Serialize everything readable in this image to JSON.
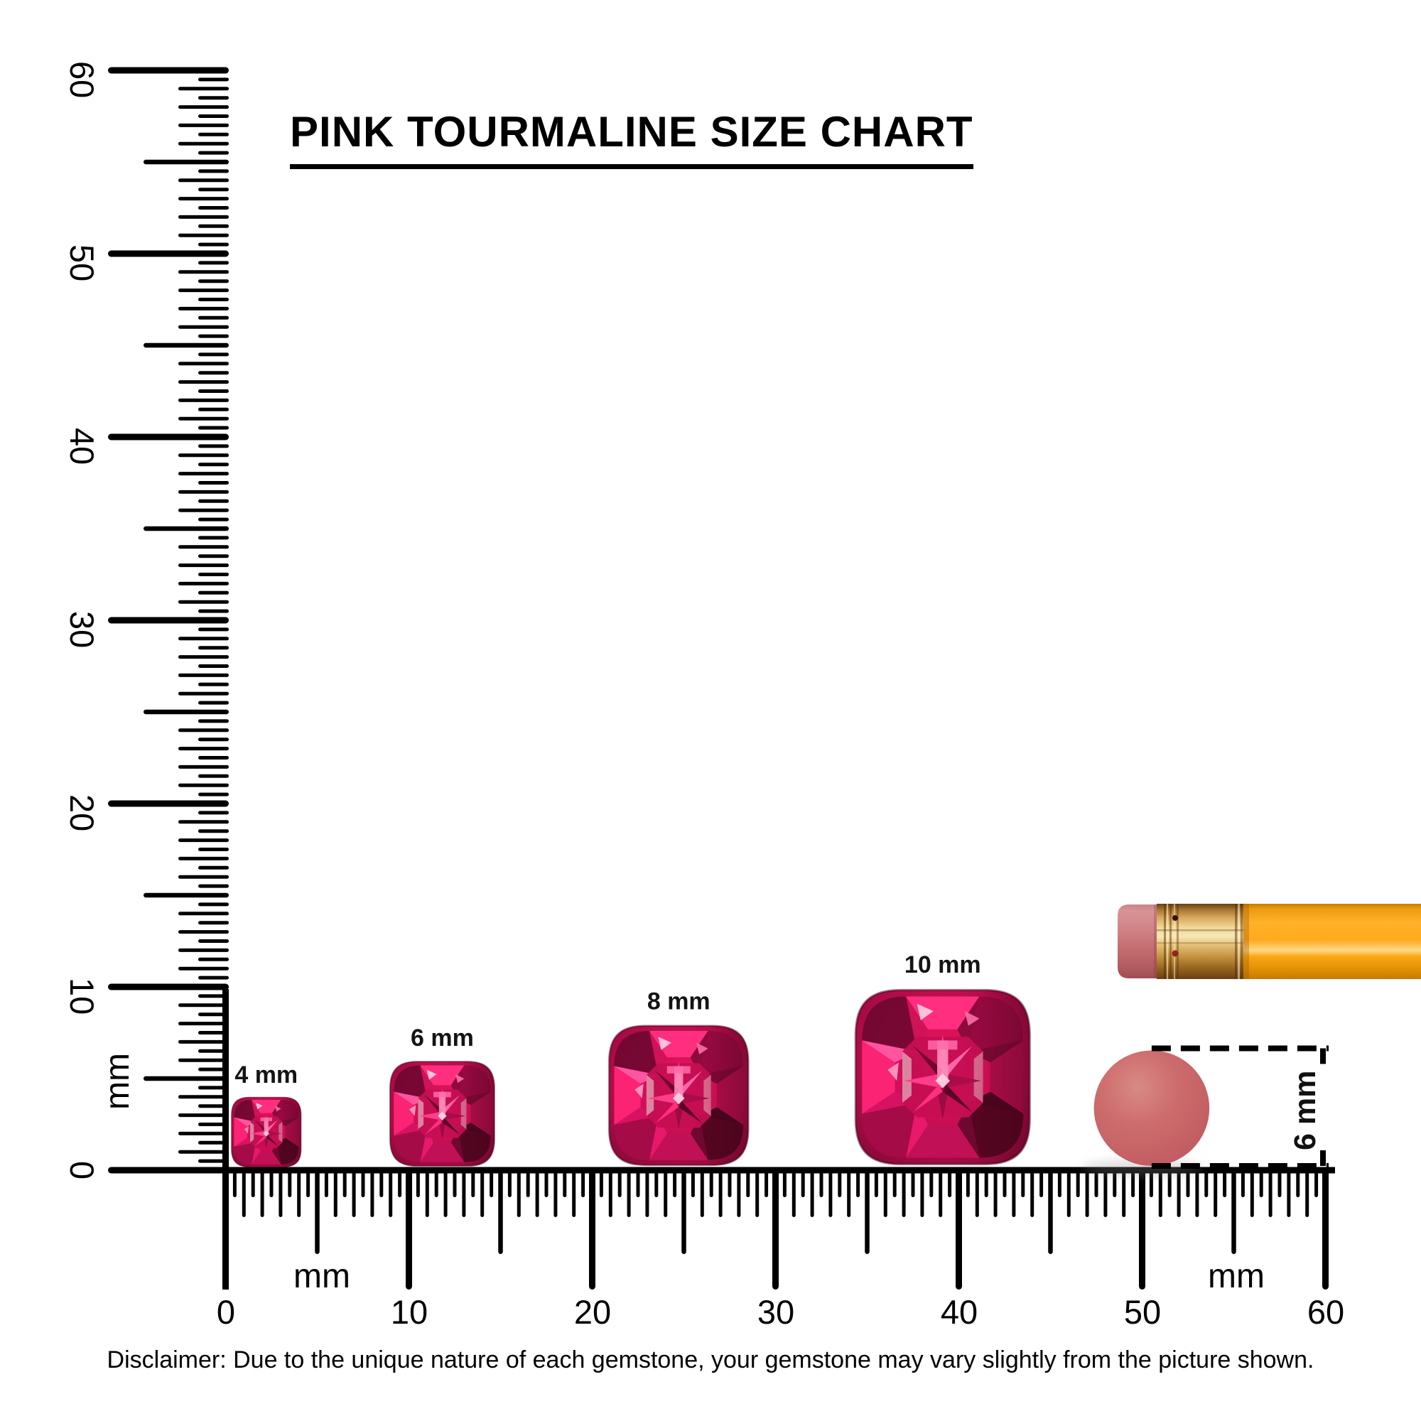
{
  "title": "PINK TOURMALINE SIZE CHART",
  "disclaimer": "Disclaimer: Due to the unique nature of each gemstone, your gemstone may vary slightly from the picture shown.",
  "rulers": {
    "vertical": {
      "unit_label": "mm",
      "min_mm": 0,
      "max_mm": 60,
      "major_labels": [
        "0",
        "10",
        "20",
        "30",
        "40",
        "50",
        "60"
      ]
    },
    "horizontal": {
      "unit_labels": [
        "mm",
        "mm"
      ],
      "min_mm": 0,
      "max_mm": 60,
      "major_labels": [
        "0",
        "10",
        "20",
        "30",
        "40",
        "50",
        "60"
      ]
    }
  },
  "gemstones": [
    {
      "label": "4 mm",
      "size_mm": 4,
      "center_mm": 2.2
    },
    {
      "label": "6 mm",
      "size_mm": 6,
      "center_mm": 11.8
    },
    {
      "label": "8 mm",
      "size_mm": 8,
      "center_mm": 24.7
    },
    {
      "label": "10 mm",
      "size_mm": 10,
      "center_mm": 39.1
    }
  ],
  "eraser_reference": {
    "annotation": "6 mm",
    "diameter_mm": 6.3,
    "center_mm": 50.5
  },
  "colors": {
    "ink": "#000000",
    "gem_bright": "#ff2e7e",
    "gem_mid": "#cf0f55",
    "gem_dark": "#8a0a3a",
    "gem_deep": "#54051f",
    "gem_light": "#ff9ec7",
    "pencil_body": "#ffb22a",
    "pencil_ferrule": "#d3a257",
    "pencil_eraser": "#c4686c",
    "eraser_circle": "#cb6467"
  }
}
